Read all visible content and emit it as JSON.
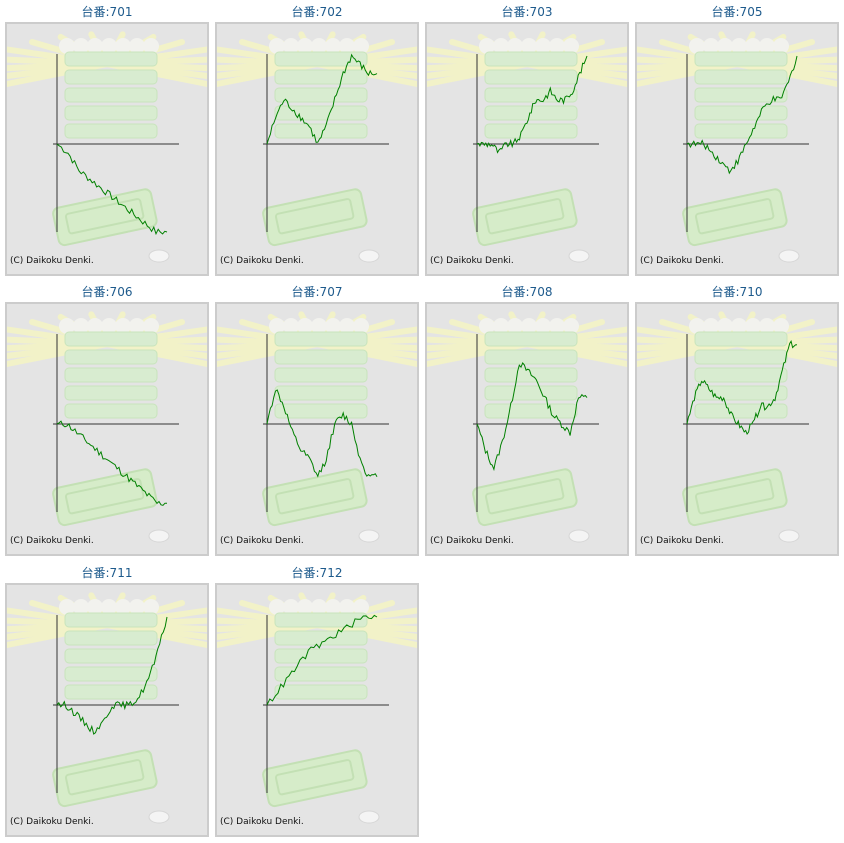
{
  "copyright": "(C) Daikoku Denki.",
  "colors": {
    "line": "#008000",
    "axis": "#333333",
    "panel": "#e4e4e4",
    "title": "#1d5a8c"
  },
  "chart_data": [
    {
      "type": "line",
      "title": "台番:701",
      "y": [
        0,
        -1,
        -3,
        -4,
        -5,
        -6,
        -7,
        -8,
        -9,
        -10,
        -10
      ]
    },
    {
      "type": "line",
      "title": "台番:702",
      "y": [
        0,
        3,
        5,
        4,
        3,
        2,
        0,
        2,
        5,
        8,
        10,
        9,
        8,
        8
      ]
    },
    {
      "type": "line",
      "title": "台番:703",
      "y": [
        0,
        0,
        0,
        -1,
        0,
        0,
        1,
        3,
        5,
        5,
        6,
        5,
        5,
        6,
        8,
        10
      ]
    },
    {
      "type": "line",
      "title": "台番:705",
      "y": [
        0,
        0,
        0,
        -1,
        -2,
        -3,
        -2,
        0,
        2,
        4,
        5,
        5,
        7,
        10
      ]
    },
    {
      "type": "line",
      "title": "台番:706",
      "y": [
        0,
        0,
        -1,
        -2,
        -3,
        -4,
        -5,
        -6,
        -7,
        -8,
        -9,
        -9
      ]
    },
    {
      "type": "line",
      "title": "台番:707",
      "y": [
        0,
        4,
        2,
        -1,
        -3,
        -4,
        -6,
        -4,
        0,
        1,
        0,
        -4,
        -6,
        -6
      ]
    },
    {
      "type": "line",
      "title": "台番:708",
      "y": [
        0,
        -3,
        -5,
        -2,
        2,
        7,
        6,
        5,
        3,
        1,
        0,
        -1,
        3,
        3
      ]
    },
    {
      "type": "line",
      "title": "台番:710",
      "y": [
        0,
        3,
        5,
        4,
        3,
        3,
        1,
        0,
        -1,
        0,
        2,
        2,
        3,
        6,
        9,
        9
      ]
    },
    {
      "type": "line",
      "title": "台番:711",
      "y": [
        0,
        0,
        -1,
        -2,
        -3,
        -2,
        0,
        0,
        0,
        1,
        3,
        6,
        10
      ]
    },
    {
      "type": "line",
      "title": "台番:712",
      "y": [
        0,
        2,
        4,
        6,
        7,
        8,
        9,
        10,
        10
      ]
    }
  ]
}
